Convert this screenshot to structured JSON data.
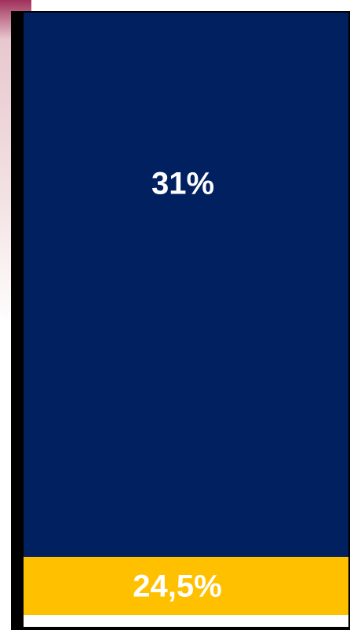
{
  "segments": [
    {
      "label": "31%"
    },
    {
      "label": "24,5%"
    }
  ]
}
